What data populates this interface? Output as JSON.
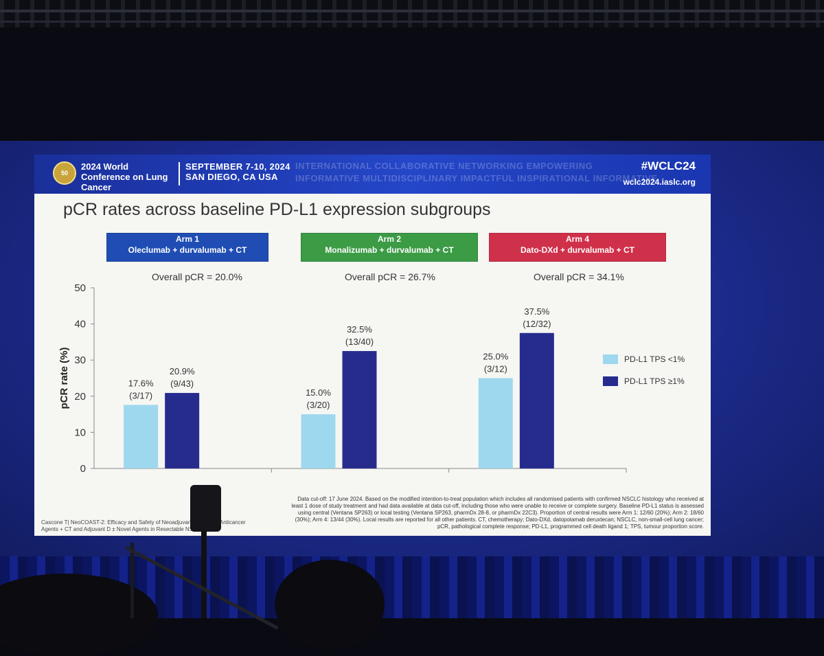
{
  "header": {
    "logo_text": "50th IASLC",
    "conference_name": "2024 World Conference on Lung Cancer",
    "dates": "SEPTEMBER 7-10, 2024",
    "location": "SAN DIEGO, CA USA",
    "ticker_line1": "INTERNATIONAL COLLABORATIVE NETWORKING EMPOWERING",
    "ticker_line2": "INFORMATIVE MULTIDISCIPLINARY IMPACTFUL INSPIRATIONAL INFORMATIVE",
    "hashtag": "#WCLC24",
    "website": "wclc2024.iaslc.org"
  },
  "arms": [
    {
      "title": "Arm 1",
      "regimen": "Oleclumab + durvalumab + CT",
      "color": "#1f4db4",
      "overall": "Overall pCR = 20.0%"
    },
    {
      "title": "Arm 2",
      "regimen": "Monalizumab + durvalumab + CT",
      "color": "#3c9b45",
      "overall": "Overall pCR = 26.7%"
    },
    {
      "title": "Arm 4",
      "regimen": "Dato-DXd + durvalumab + CT",
      "color": "#d0314a",
      "overall": "Overall pCR = 34.1%"
    }
  ],
  "chart_data": {
    "type": "bar",
    "title": "pCR rates across baseline PD-L1 expression subgroups",
    "ylabel": "pCR rate (%)",
    "ylim": [
      0,
      50
    ],
    "yticks": [
      0,
      10,
      20,
      30,
      40,
      50
    ],
    "categories": [
      "Arm 1",
      "Arm 2",
      "Arm 4"
    ],
    "legend_position": "right",
    "series": [
      {
        "name": "PD-L1 TPS <1%",
        "color": "#9ed8ee",
        "values": [
          17.6,
          15.0,
          25.0
        ],
        "labels": [
          "17.6%",
          "15.0%",
          "25.0%"
        ],
        "fractions": [
          "(3/17)",
          "(3/20)",
          "(3/12)"
        ]
      },
      {
        "name": "PD-L1 TPS ≥1%",
        "color": "#262c8e",
        "values": [
          20.9,
          32.5,
          37.5
        ],
        "labels": [
          "20.9%",
          "32.5%",
          "37.5%"
        ],
        "fractions": [
          "(9/43)",
          "(13/40)",
          "(12/32)"
        ]
      }
    ]
  },
  "footnote": "Data cut-off: 17 June 2024. Based on the modified intention-to-treat population which includes all randomised patients with confirmed NSCLC histology who received at least 1 dose of study treatment and had data available at data cut-off, including those who were unable to receive or complete surgery. Baseline PD-L1 status is assessed using central (Ventana SP263) or local testing (Ventana SP263, pharmDx 28-8, or pharmDx 22C3). Proportion of central results were Arm 1: 12/60 (20%); Arm 2: 18/60 (30%); Arm 4: 13/44 (30%). Local results are reported for all other patients. CT, chemotherapy; Dato-DXd, datopotamab deruxtecan; NSCLC, non-small-cell lung cancer; pCR, pathological complete response; PD-L1, programmed cell death ligand 1; TPS, tumour proportion score.",
  "citation": "Cascone T| NeoCOAST-2: Efficacy and Safety of Neoadjuvant D + Novel Anticancer Agents + CT and Adjuvant D ± Novel Agents in Resectable NSCLC"
}
